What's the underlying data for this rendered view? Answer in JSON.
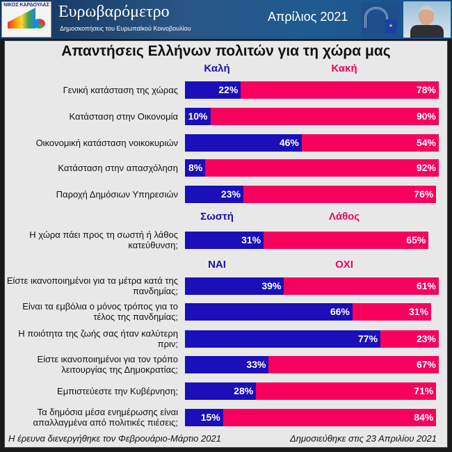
{
  "header": {
    "logo_text": "ΝΙΚΟΣ ΚΑΡΔΟΥΛΑΣ",
    "title": "Ευρωβαρόμετρο",
    "subtitle": "Δημοσκοπήσεις του Ευρωπαϊκού Κοινοβουλίου",
    "date": "Απρίλιος 2021"
  },
  "footer": {
    "left": "Η έρευνα διενεργήθηκε τον Φεβρουάριο-Μάρτιο 2021",
    "right": "Δημοσιεύθηκε στις 23 Απριλίου 2021"
  },
  "colors": {
    "positive": "#1a0fb8",
    "negative": "#f8005e"
  },
  "chart_data": {
    "type": "bar",
    "stacked": true,
    "orientation": "horizontal",
    "title": "Απαντήσεις Ελλήνων πολιτών για τη χώρα μας",
    "groups": [
      {
        "pos_label": "Καλή",
        "neg_label": "Κακή",
        "rows": [
          {
            "label": "Γενική κατάσταση της χώρας",
            "pos": 22,
            "neg": 78
          },
          {
            "label": "Κατάσταση στην Οικονομία",
            "pos": 10,
            "neg": 90
          },
          {
            "label": "Οικονομική κατάσταση νοικοκυριών",
            "pos": 46,
            "neg": 54
          },
          {
            "label": "Κατάσταση στην απασχόληση",
            "pos": 8,
            "neg": 92
          },
          {
            "label": "Παροχή Δημόσιων Υπηρεσιών",
            "pos": 23,
            "neg": 76
          }
        ]
      },
      {
        "pos_label": "Σωστή",
        "neg_label": "Λάθος",
        "rows": [
          {
            "label": "Η χώρα πάει προς τη σωστή ή λάθος κατεύθυνση;",
            "pos": 31,
            "neg": 65
          }
        ]
      },
      {
        "pos_label": "ΝΑΙ",
        "neg_label": "ΟΧΙ",
        "rows": [
          {
            "label": "Είστε ικανοποιημένοι για τα μέτρα κατά της πανδημίας;",
            "pos": 39,
            "neg": 61
          },
          {
            "label": "Είναι τα εμβόλια ο μόνος τρόπος για το τέλος της πανδημίας;",
            "pos": 66,
            "neg": 31
          },
          {
            "label": "Η ποιότητα της ζωής σας ήταν καλύτερη πριν;",
            "pos": 77,
            "neg": 23
          },
          {
            "label": "Είστε ικανοποιημένοι για τον τρόπο λειτουργίας της Δημοκρατίας;",
            "pos": 33,
            "neg": 67
          },
          {
            "label": "Εμπιστεύεστε την Κυβέρνηση;",
            "pos": 28,
            "neg": 71
          },
          {
            "label": "Τα δημόσια μέσα ενημέρωσης είναι απαλλαγμένα από πολιτικές πιέσεις;",
            "pos": 15,
            "neg": 84
          }
        ]
      }
    ]
  }
}
